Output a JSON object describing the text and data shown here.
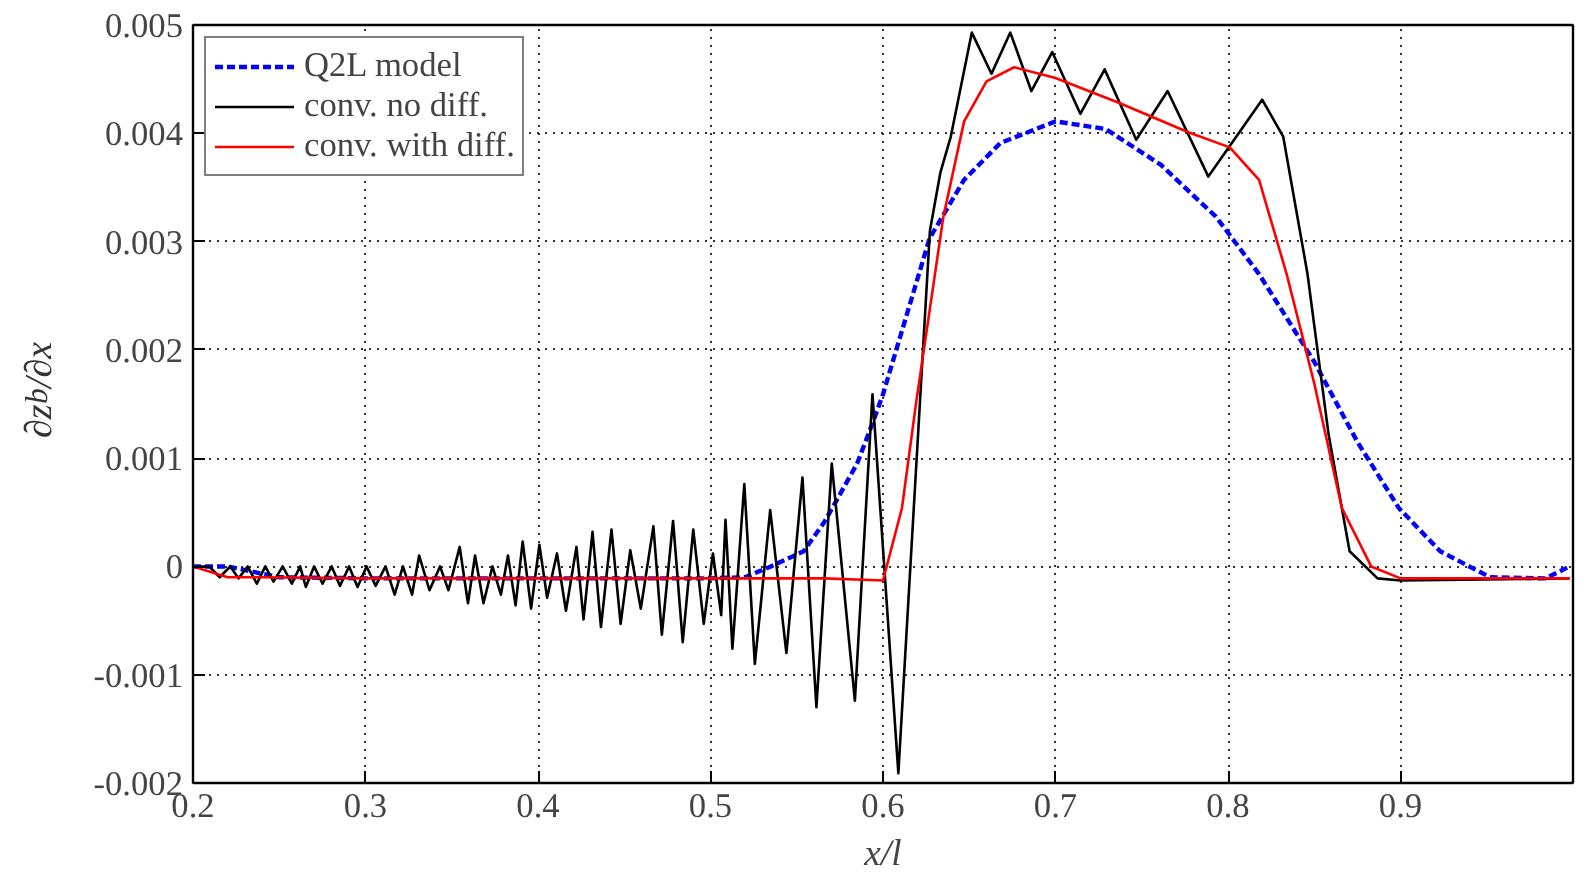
{
  "chart_data": {
    "type": "line",
    "xlabel": "x/l",
    "ylabel": "∂z$_{b}$/∂x",
    "xlim": [
      0.2,
      1.0
    ],
    "xticks": [
      0.2,
      0.3,
      0.4,
      0.5,
      0.6,
      0.7,
      0.8,
      0.9
    ],
    "ylim": [
      -0.002,
      0.005
    ],
    "yticks": [
      -0.002,
      -0.001,
      0,
      0.001,
      0.002,
      0.003,
      0.004,
      0.005
    ],
    "grid": true,
    "legend": "top left",
    "series": [
      {
        "name": "Q2L model",
        "color": "#0000ff",
        "line_style": "dashed",
        "x": [
          0.2,
          0.22,
          0.25,
          0.3,
          0.4,
          0.5,
          0.52,
          0.535,
          0.554,
          0.566,
          0.5745,
          0.585,
          0.5946,
          0.6,
          0.627,
          0.647,
          0.668,
          0.7,
          0.729,
          0.761,
          0.793,
          0.818,
          0.85,
          0.875,
          0.899,
          0.923,
          0.952,
          0.984,
          0.998
        ],
        "values": [
          0,
          0,
          -0.0001,
          -0.00011,
          -0.00011,
          -0.00011,
          -0.0001,
          0,
          0.00014,
          0.00041,
          0.00065,
          0.00095,
          0.00135,
          0.00159,
          0.00303,
          0.00357,
          0.00391,
          0.00411,
          0.00404,
          0.00371,
          0.00323,
          0.0027,
          0.00189,
          0.00115,
          0.00054,
          0.00014,
          -0.0001,
          -0.00011,
          0
        ]
      },
      {
        "name": "conv. no diff.",
        "color": "#000000",
        "line_style": "solid",
        "x": [
          0.2013,
          0.2094,
          0.2155,
          0.2216,
          0.2264,
          0.2317,
          0.237,
          0.2419,
          0.2467,
          0.252,
          0.2573,
          0.2621,
          0.2654,
          0.2702,
          0.2751,
          0.2804,
          0.2852,
          0.2905,
          0.2954,
          0.3006,
          0.3059,
          0.3116,
          0.3169,
          0.3217,
          0.327,
          0.3311,
          0.3371,
          0.3432,
          0.3481,
          0.3546,
          0.3594,
          0.3635,
          0.3684,
          0.3736,
          0.3785,
          0.3826,
          0.387,
          0.3911,
          0.396,
          0.4008,
          0.4053,
          0.411,
          0.4162,
          0.4223,
          0.4264,
          0.4316,
          0.4365,
          0.4426,
          0.4479,
          0.4535,
          0.4596,
          0.4669,
          0.4718,
          0.4783,
          0.4839,
          0.49,
          0.4961,
          0.5014,
          0.5062,
          0.5087,
          0.5127,
          0.5196,
          0.5257,
          0.5346,
          0.544,
          0.5533,
          0.5614,
          0.5703,
          0.5837,
          0.5939,
          0.6089,
          0.6272,
          0.6333,
          0.6393,
          0.6515,
          0.6629,
          0.6738,
          0.686,
          0.6981,
          0.7144,
          0.7285,
          0.7468,
          0.765,
          0.7886,
          0.8198,
          0.832,
          0.8461,
          0.8583,
          0.8705,
          0.8867,
          0.9,
          0.998
        ],
        "values": [
          0,
          0,
          -0.0001,
          0,
          -0.00011,
          0,
          -0.00016,
          0,
          -0.00014,
          0,
          -0.00016,
          0,
          -0.00019,
          0,
          -0.00016,
          0,
          -0.00018,
          0,
          -0.00019,
          0,
          -0.00018,
          0,
          -0.00026,
          0,
          -0.00026,
          0.0001,
          -0.00022,
          0,
          -0.00022,
          0.00018,
          -0.00034,
          0.0001,
          -0.00034,
          0,
          -0.00026,
          0.0001,
          -0.00036,
          0.00023,
          -0.00039,
          0.0002,
          -0.00029,
          0.00012,
          -0.00041,
          0.00018,
          -0.00049,
          0.00032,
          -0.00056,
          0.00034,
          -0.00053,
          0.00015,
          -0.00039,
          0.00037,
          -0.00063,
          0.00042,
          -0.0007,
          0.00034,
          -0.00053,
          0.00012,
          -0.00045,
          0.00043,
          -0.00076,
          0.00076,
          -0.0009,
          0.00052,
          -0.0008,
          0.00082,
          -0.0013,
          0.00095,
          -0.00124,
          0.00159,
          -0.00191,
          0.0031,
          0.00364,
          0.00397,
          0.00493,
          0.00455,
          0.00493,
          0.00439,
          0.00475,
          0.00418,
          0.00459,
          0.00394,
          0.00439,
          0.0036,
          0.00431,
          0.00397,
          0.0027,
          0.00122,
          0.00014,
          -0.00011,
          -0.00013,
          -0.00011
        ]
      },
      {
        "name": "conv. with diff.",
        "color": "#ff0000",
        "line_style": "solid",
        "x": [
          0.2,
          0.22,
          0.24,
          0.3,
          0.5,
          0.566,
          0.6,
          0.611,
          0.619,
          0.627,
          0.635,
          0.647,
          0.66,
          0.676,
          0.7,
          0.737,
          0.777,
          0.801,
          0.818,
          0.834,
          0.85,
          0.866,
          0.883,
          0.9,
          0.998
        ],
        "values": [
          0,
          -0.0001,
          -0.0001,
          -0.00011,
          -0.00011,
          -0.00011,
          -0.00013,
          0.00054,
          0.00149,
          0.00236,
          0.00323,
          0.00411,
          0.00448,
          0.00461,
          0.00451,
          0.00428,
          0.00401,
          0.00387,
          0.00357,
          0.0027,
          0.00169,
          0.00054,
          0,
          -0.00011,
          -0.00011
        ]
      }
    ]
  }
}
